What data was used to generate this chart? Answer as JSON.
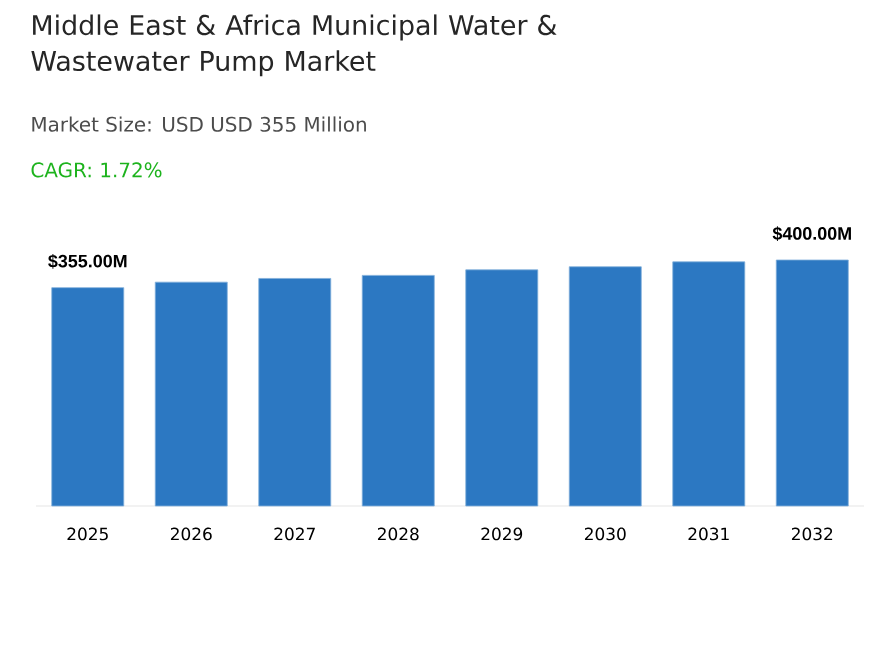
{
  "chart_data": {
    "type": "bar",
    "title": "Middle East & Africa Municipal Water & Wastewater Pump Market",
    "subtitle": "Market Size: USD USD 355 Million",
    "annotations": [
      "CAGR: 1.72%"
    ],
    "categories": [
      "2025",
      "2026",
      "2027",
      "2028",
      "2029",
      "2030",
      "2031",
      "2032"
    ],
    "values": [
      355,
      364,
      370,
      375,
      384,
      389,
      397,
      400
    ],
    "value_labels": [
      "$355.00M",
      null,
      null,
      null,
      null,
      null,
      null,
      "$400.00M"
    ],
    "color": "#2c78c2"
  }
}
